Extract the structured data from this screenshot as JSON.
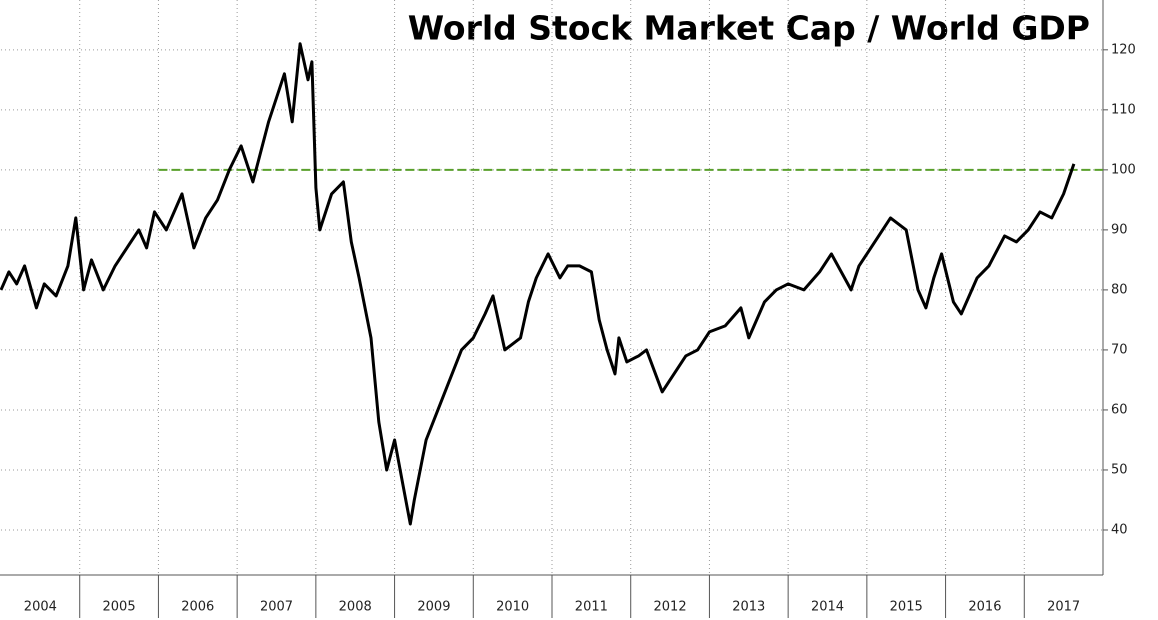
{
  "chart_data": {
    "type": "line",
    "title": "World Stock Market Cap / World GDP",
    "categories": [
      "2004",
      "2005",
      "2006",
      "2007",
      "2008",
      "2009",
      "2010",
      "2011",
      "2012",
      "2013",
      "2014",
      "2015",
      "2016",
      "2017"
    ],
    "xlim": [
      2004,
      2018
    ],
    "xticks": [
      2005,
      2006,
      2007,
      2008,
      2009,
      2010,
      2011,
      2012,
      2013,
      2014,
      2015,
      2016,
      2017
    ],
    "ylim": [
      32.5,
      128.3
    ],
    "yticks": [
      40,
      50,
      60,
      70,
      80,
      90,
      100,
      110,
      120
    ],
    "grid": true,
    "hline": {
      "y": 100,
      "xmin": 2006,
      "color": "#5aa02c"
    },
    "series": [
      {
        "name": "World Stock Market Cap / World GDP",
        "color": "#000000",
        "x": [
          2004.0,
          2004.1,
          2004.2,
          2004.3,
          2004.45,
          2004.55,
          2004.7,
          2004.85,
          2004.95,
          2005.05,
          2005.15,
          2005.3,
          2005.45,
          2005.6,
          2005.75,
          2005.85,
          2005.95,
          2006.1,
          2006.3,
          2006.45,
          2006.6,
          2006.75,
          2006.9,
          2007.05,
          2007.2,
          2007.4,
          2007.6,
          2007.7,
          2007.8,
          2007.9,
          2007.95,
          2008.0,
          2008.05,
          2008.2,
          2008.35,
          2008.45,
          2008.55,
          2008.7,
          2008.8,
          2008.9,
          2009.0,
          2009.1,
          2009.2,
          2009.25,
          2009.4,
          2009.55,
          2009.7,
          2009.85,
          2010.0,
          2010.15,
          2010.25,
          2010.4,
          2010.6,
          2010.7,
          2010.8,
          2010.95,
          2011.1,
          2011.2,
          2011.35,
          2011.5,
          2011.6,
          2011.7,
          2011.8,
          2011.85,
          2011.95,
          2012.1,
          2012.2,
          2012.4,
          2012.55,
          2012.7,
          2012.85,
          2013.0,
          2013.2,
          2013.4,
          2013.5,
          2013.7,
          2013.85,
          2014.0,
          2014.2,
          2014.4,
          2014.55,
          2014.8,
          2014.9,
          2015.0,
          2015.15,
          2015.3,
          2015.5,
          2015.65,
          2015.75,
          2015.85,
          2015.95,
          2016.1,
          2016.2,
          2016.4,
          2016.55,
          2016.75,
          2016.9,
          2017.05,
          2017.2,
          2017.35,
          2017.5,
          2017.63
        ],
        "values": [
          80,
          83,
          81,
          84,
          77,
          81,
          79,
          84,
          92,
          80,
          85,
          80,
          84,
          87,
          90,
          87,
          93,
          90,
          96,
          87,
          92,
          95,
          100,
          104,
          98,
          108,
          116,
          108,
          121,
          115,
          118,
          97,
          90,
          96,
          98,
          88,
          82,
          72,
          58,
          50,
          55,
          48,
          41,
          45,
          55,
          60,
          65,
          70,
          72,
          76,
          79,
          70,
          72,
          78,
          82,
          86,
          82,
          84,
          84,
          83,
          75,
          70,
          66,
          72,
          68,
          69,
          70,
          63,
          66,
          69,
          70,
          73,
          74,
          77,
          72,
          78,
          80,
          81,
          80,
          83,
          86,
          80,
          84,
          86,
          89,
          92,
          90,
          80,
          77,
          82,
          86,
          78,
          76,
          82,
          84,
          89,
          88,
          90,
          93,
          92,
          96,
          101
        ]
      }
    ]
  }
}
